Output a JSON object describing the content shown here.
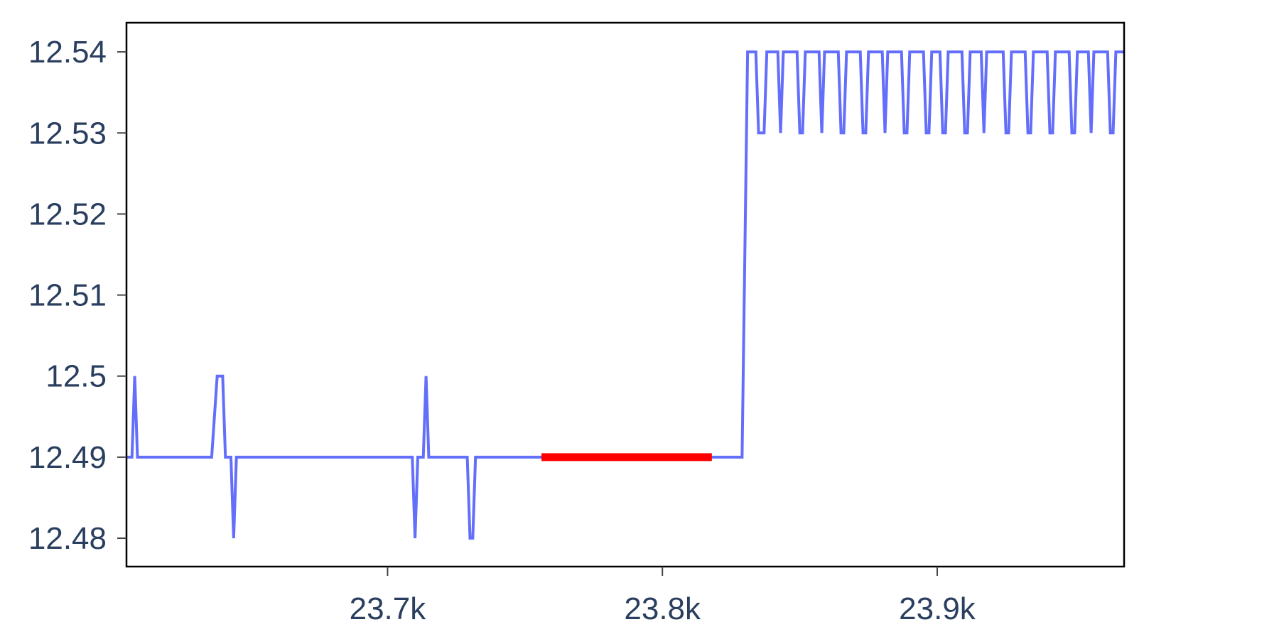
{
  "chart_data": {
    "type": "line",
    "title": "",
    "xlabel": "",
    "ylabel": "",
    "xlim": [
      23605,
      23968
    ],
    "ylim": [
      12.4765,
      12.5436
    ],
    "grid": false,
    "legend": "none",
    "x_ticks": [
      {
        "value": 23700,
        "label": "23.7k"
      },
      {
        "value": 23800,
        "label": "23.8k"
      },
      {
        "value": 23900,
        "label": "23.9k"
      }
    ],
    "y_ticks": [
      {
        "value": 12.48,
        "label": "12.48"
      },
      {
        "value": 12.49,
        "label": "12.49"
      },
      {
        "value": 12.5,
        "label": "12.5"
      },
      {
        "value": 12.51,
        "label": "12.51"
      },
      {
        "value": 12.52,
        "label": "12.52"
      },
      {
        "value": 12.53,
        "label": "12.53"
      },
      {
        "value": 12.54,
        "label": "12.54"
      }
    ],
    "series": [
      {
        "color": "#636efa",
        "points": [
          [
            23605,
            12.49
          ],
          [
            23607,
            12.49
          ],
          [
            23608,
            12.5
          ],
          [
            23609,
            12.49
          ],
          [
            23610,
            12.49
          ],
          [
            23612,
            12.49
          ],
          [
            23614,
            12.49
          ],
          [
            23616,
            12.49
          ],
          [
            23618,
            12.49
          ],
          [
            23620,
            12.49
          ],
          [
            23622,
            12.49
          ],
          [
            23624,
            12.49
          ],
          [
            23626,
            12.49
          ],
          [
            23628,
            12.49
          ],
          [
            23630,
            12.49
          ],
          [
            23632,
            12.49
          ],
          [
            23634,
            12.49
          ],
          [
            23636,
            12.49
          ],
          [
            23638,
            12.5
          ],
          [
            23640,
            12.5
          ],
          [
            23641,
            12.49
          ],
          [
            23643,
            12.49
          ],
          [
            23644,
            12.48
          ],
          [
            23645,
            12.49
          ],
          [
            23647,
            12.49
          ],
          [
            23650,
            12.49
          ],
          [
            23655,
            12.49
          ],
          [
            23660,
            12.49
          ],
          [
            23665,
            12.49
          ],
          [
            23670,
            12.49
          ],
          [
            23675,
            12.49
          ],
          [
            23680,
            12.49
          ],
          [
            23685,
            12.49
          ],
          [
            23690,
            12.49
          ],
          [
            23695,
            12.49
          ],
          [
            23700,
            12.49
          ],
          [
            23705,
            12.49
          ],
          [
            23709,
            12.49
          ],
          [
            23710,
            12.48
          ],
          [
            23711,
            12.49
          ],
          [
            23713,
            12.49
          ],
          [
            23714,
            12.5
          ],
          [
            23715,
            12.49
          ],
          [
            23718,
            12.49
          ],
          [
            23722,
            12.49
          ],
          [
            23726,
            12.49
          ],
          [
            23729,
            12.49
          ],
          [
            23730,
            12.48
          ],
          [
            23731,
            12.48
          ],
          [
            23732,
            12.49
          ],
          [
            23736,
            12.49
          ],
          [
            23740,
            12.49
          ],
          [
            23745,
            12.49
          ],
          [
            23750,
            12.49
          ],
          [
            23755,
            12.49
          ],
          [
            23760,
            12.49
          ],
          [
            23765,
            12.49
          ],
          [
            23770,
            12.49
          ],
          [
            23775,
            12.49
          ],
          [
            23780,
            12.49
          ],
          [
            23785,
            12.49
          ],
          [
            23790,
            12.49
          ],
          [
            23795,
            12.49
          ],
          [
            23800,
            12.49
          ],
          [
            23805,
            12.49
          ],
          [
            23810,
            12.49
          ],
          [
            23815,
            12.49
          ],
          [
            23820,
            12.49
          ],
          [
            23825,
            12.49
          ],
          [
            23829,
            12.49
          ],
          [
            23830,
            12.515
          ],
          [
            23831,
            12.54
          ],
          [
            23834,
            12.54
          ],
          [
            23835,
            12.53
          ],
          [
            23837,
            12.53
          ],
          [
            23838,
            12.54
          ],
          [
            23842,
            12.54
          ],
          [
            23843,
            12.53
          ],
          [
            23844,
            12.54
          ],
          [
            23849,
            12.54
          ],
          [
            23850,
            12.53
          ],
          [
            23851,
            12.53
          ],
          [
            23852,
            12.54
          ],
          [
            23857,
            12.54
          ],
          [
            23858,
            12.53
          ],
          [
            23859,
            12.54
          ],
          [
            23864,
            12.54
          ],
          [
            23865,
            12.53
          ],
          [
            23866,
            12.53
          ],
          [
            23867,
            12.54
          ],
          [
            23872,
            12.54
          ],
          [
            23873,
            12.53
          ],
          [
            23874,
            12.53
          ],
          [
            23875,
            12.54
          ],
          [
            23880,
            12.54
          ],
          [
            23881,
            12.53
          ],
          [
            23882,
            12.54
          ],
          [
            23887,
            12.54
          ],
          [
            23888,
            12.53
          ],
          [
            23889,
            12.53
          ],
          [
            23890,
            12.54
          ],
          [
            23895,
            12.54
          ],
          [
            23896,
            12.53
          ],
          [
            23897,
            12.53
          ],
          [
            23898,
            12.54
          ],
          [
            23901,
            12.54
          ],
          [
            23902,
            12.53
          ],
          [
            23903,
            12.53
          ],
          [
            23904,
            12.54
          ],
          [
            23909,
            12.54
          ],
          [
            23910,
            12.53
          ],
          [
            23911,
            12.53
          ],
          [
            23912,
            12.54
          ],
          [
            23916,
            12.54
          ],
          [
            23917,
            12.53
          ],
          [
            23918,
            12.54
          ],
          [
            23924,
            12.54
          ],
          [
            23925,
            12.53
          ],
          [
            23926,
            12.53
          ],
          [
            23927,
            12.54
          ],
          [
            23932,
            12.54
          ],
          [
            23933,
            12.53
          ],
          [
            23934,
            12.53
          ],
          [
            23935,
            12.54
          ],
          [
            23940,
            12.54
          ],
          [
            23941,
            12.53
          ],
          [
            23942,
            12.53
          ],
          [
            23943,
            12.54
          ],
          [
            23948,
            12.54
          ],
          [
            23949,
            12.53
          ],
          [
            23950,
            12.53
          ],
          [
            23951,
            12.54
          ],
          [
            23955,
            12.54
          ],
          [
            23956,
            12.53
          ],
          [
            23957,
            12.54
          ],
          [
            23962,
            12.54
          ],
          [
            23963,
            12.53
          ],
          [
            23964,
            12.53
          ],
          [
            23965,
            12.54
          ],
          [
            23969,
            12.54
          ],
          [
            23970,
            12.53
          ],
          [
            23972,
            12.53
          ]
        ]
      },
      {
        "color": "#ff0000",
        "points": [
          [
            23756,
            12.49
          ],
          [
            23818,
            12.49
          ]
        ]
      }
    ]
  }
}
